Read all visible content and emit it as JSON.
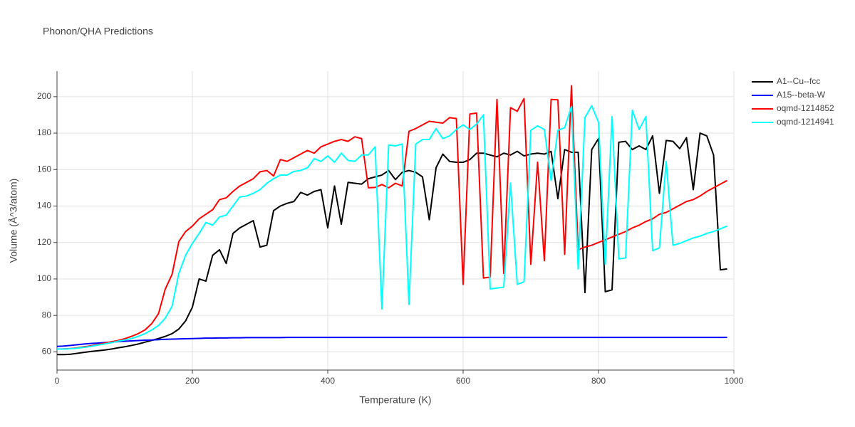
{
  "chart_data": {
    "type": "line",
    "title": "Phonon/QHA Predictions",
    "x_label": "Temperature (K)",
    "y_label": "Volume (Å^3/atom)",
    "xlim": [
      0,
      1000
    ],
    "ylim": [
      50,
      214
    ],
    "xticks": [
      0,
      200,
      400,
      600,
      800,
      1000
    ],
    "yticks": [
      60,
      80,
      100,
      120,
      140,
      160,
      180,
      200
    ],
    "grid": true,
    "legend": "top-right",
    "x": [
      0,
      10,
      20,
      30,
      40,
      50,
      60,
      70,
      80,
      90,
      100,
      110,
      120,
      130,
      140,
      150,
      160,
      170,
      180,
      190,
      200,
      210,
      220,
      230,
      240,
      250,
      260,
      270,
      280,
      290,
      300,
      310,
      320,
      330,
      340,
      350,
      360,
      370,
      380,
      390,
      400,
      410,
      420,
      430,
      440,
      450,
      460,
      470,
      480,
      490,
      500,
      510,
      520,
      530,
      540,
      550,
      560,
      570,
      580,
      590,
      600,
      610,
      620,
      630,
      640,
      650,
      660,
      670,
      680,
      690,
      700,
      710,
      720,
      730,
      740,
      750,
      760,
      770,
      780,
      790,
      800,
      810,
      820,
      830,
      840,
      850,
      860,
      870,
      880,
      890,
      900,
      910,
      920,
      930,
      940,
      950,
      960,
      970,
      980,
      990
    ],
    "series": [
      {
        "name": "A1--Cu--fcc",
        "color": "#000000",
        "values": [
          58.5,
          58.5,
          58.7,
          59.2,
          59.7,
          60.2,
          60.6,
          61,
          61.5,
          62.2,
          62.8,
          63.5,
          64.3,
          65.3,
          66.3,
          67.3,
          68.5,
          70,
          72.5,
          77,
          84.5,
          100,
          98.8,
          113,
          116,
          108.5,
          125,
          128,
          130,
          132,
          117.5,
          118.5,
          137.5,
          140,
          141.5,
          142.5,
          147.5,
          146,
          148,
          149,
          128,
          151,
          130,
          153,
          152.5,
          152,
          155,
          156,
          157,
          159.5,
          154.5,
          158.5,
          159.5,
          158.5,
          156,
          132.5,
          161,
          168.5,
          164.5,
          164,
          164,
          165.5,
          169,
          169,
          168,
          167,
          169,
          168,
          170,
          167.5,
          168.5,
          169,
          168.5,
          170,
          144,
          171,
          169.5,
          169.5,
          92.5,
          171,
          177,
          93,
          94,
          175,
          175.5,
          171,
          173,
          171,
          178.5,
          147,
          176,
          175.5,
          171.5,
          177.5,
          149,
          180,
          178.5,
          168,
          105,
          105.5
        ]
      },
      {
        "name": "A15--beta-W",
        "color": "#0000ff",
        "values": [
          63,
          63.2,
          63.5,
          63.9,
          64.3,
          64.6,
          64.8,
          65.1,
          65.3,
          65.6,
          65.8,
          66,
          66.2,
          66.4,
          66.5,
          66.7,
          66.9,
          67,
          67.1,
          67.2,
          67.3,
          67.4,
          67.5,
          67.5,
          67.6,
          67.6,
          67.7,
          67.7,
          67.8,
          67.8,
          67.8,
          67.8,
          67.8,
          67.8,
          67.9,
          67.9,
          67.9,
          67.9,
          67.9,
          67.9,
          67.9,
          67.9,
          67.9,
          67.9,
          67.9,
          67.9,
          67.9,
          67.9,
          67.9,
          67.9,
          67.9,
          67.9,
          67.9,
          67.9,
          67.9,
          67.9,
          67.9,
          67.9,
          67.9,
          67.9,
          67.9,
          67.9,
          67.9,
          67.9,
          67.9,
          67.9,
          67.9,
          67.9,
          67.9,
          67.9,
          67.9,
          67.9,
          67.9,
          67.9,
          67.9,
          67.9,
          67.9,
          67.9,
          67.9,
          67.9,
          67.9,
          67.9,
          67.9,
          67.9,
          67.9,
          67.9,
          67.9,
          67.9,
          67.9,
          67.9,
          67.9,
          67.9,
          67.9,
          67.9,
          67.9,
          67.9,
          67.9,
          67.9,
          67.9,
          67.9
        ]
      },
      {
        "name": "oqmd-1214852",
        "color": "#ff0000",
        "values": [
          61.5,
          61.6,
          61.8,
          62.2,
          62.8,
          63.3,
          64,
          64.8,
          65.5,
          66.2,
          67.2,
          68.5,
          70,
          72,
          75.5,
          81,
          94.5,
          102.5,
          120.5,
          126,
          129,
          133,
          135.5,
          138,
          143.5,
          144.5,
          148,
          151,
          153,
          155,
          158.8,
          159.5,
          156.5,
          165.5,
          164.5,
          166.5,
          168.5,
          170.5,
          169,
          172.5,
          174,
          175.5,
          176.5,
          175.5,
          178,
          177,
          150,
          150.2,
          151.8,
          150,
          152.5,
          151,
          181,
          182.5,
          184.5,
          186.5,
          186,
          185.5,
          188.5,
          188,
          97,
          190.5,
          191,
          100.5,
          101,
          198.5,
          103,
          194,
          192,
          199,
          108,
          164,
          110,
          198.5,
          198.3,
          113.5,
          206,
          116,
          117.5,
          118.5,
          120,
          121.5,
          123,
          124.5,
          126,
          128,
          129.5,
          131.5,
          133,
          135.5,
          136.5,
          138.5,
          140.5,
          142.5,
          143.5,
          145.5,
          148,
          150,
          152,
          154
        ]
      },
      {
        "name": "oqmd-1214941",
        "color": "#00ffff",
        "values": [
          61.5,
          61.5,
          61.7,
          62,
          62.5,
          63,
          63.7,
          64.3,
          65,
          65.8,
          66.5,
          67.3,
          68.5,
          70,
          72,
          74.5,
          78.5,
          85,
          103,
          113,
          119.5,
          125,
          131,
          129.5,
          134,
          135,
          140,
          145,
          145.5,
          147,
          149,
          152.5,
          155,
          157,
          157,
          159,
          159.5,
          161,
          166,
          164.5,
          167.5,
          164,
          169,
          165,
          164.5,
          168,
          168,
          172.5,
          83.5,
          173.5,
          173,
          174,
          86,
          174,
          176.5,
          176.5,
          182.5,
          177,
          178.5,
          182,
          184.5,
          182,
          185,
          190,
          94.5,
          95,
          95.5,
          152.5,
          97,
          98.5,
          181.5,
          184,
          182,
          154,
          181.5,
          183,
          194.5,
          105.5,
          188.5,
          195,
          186,
          108,
          189,
          111,
          111.5,
          192.5,
          182,
          189,
          115.5,
          117,
          164.5,
          118.5,
          119.5,
          121,
          122.5,
          123.5,
          125,
          126,
          127.5,
          129
        ]
      }
    ]
  }
}
